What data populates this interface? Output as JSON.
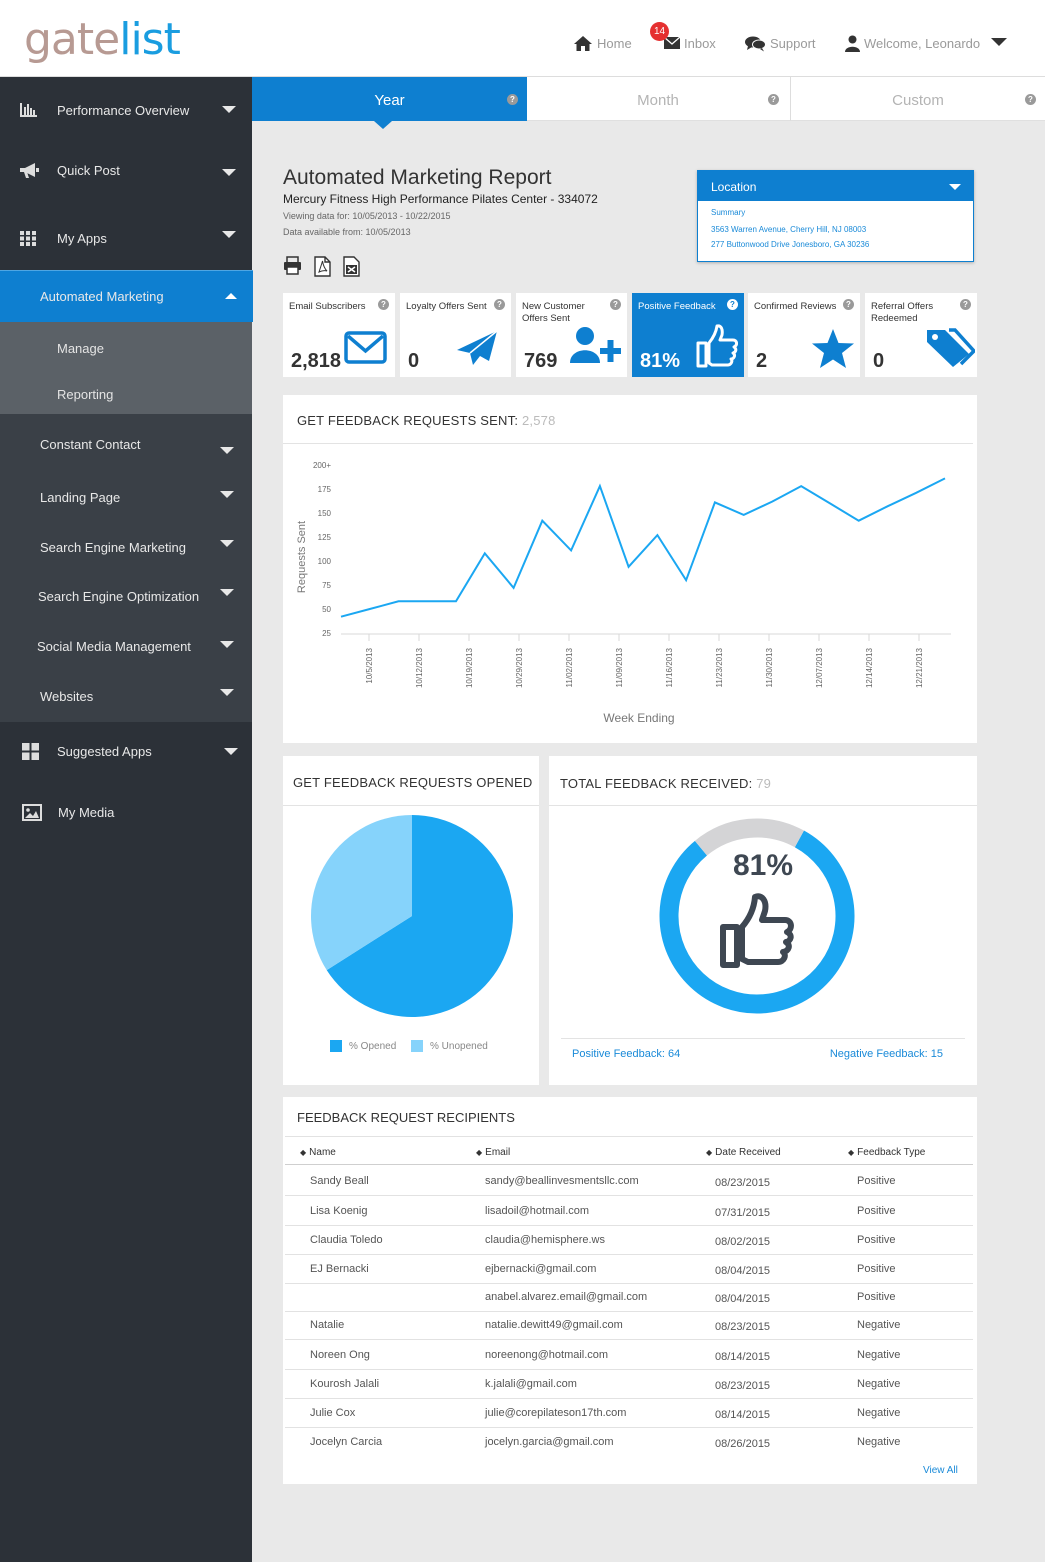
{
  "brand": {
    "logo_gate": "gate",
    "logo_list": "list"
  },
  "topnav": {
    "home": "Home",
    "inbox": "Inbox",
    "inbox_badge": "14",
    "support": "Support",
    "welcome": "Welcome, Leonardo"
  },
  "sidebar": {
    "performance": "Performance Overview",
    "quick_post": "Quick Post",
    "my_apps": "My Apps",
    "automated_marketing": "Automated Marketing",
    "manage": "Manage",
    "reporting": "Reporting",
    "constant_contact": "Constant Contact",
    "landing_page": "Landing Page",
    "sem": "Search Engine Marketing",
    "seo": "Search Engine Optimization",
    "smm": "Social Media Management",
    "websites": "Websites",
    "suggested_apps": "Suggested Apps",
    "my_media": "My Media"
  },
  "tabs": {
    "year": "Year",
    "month": "Month",
    "custom": "Custom"
  },
  "report": {
    "title": "Automated Marketing Report",
    "subtitle": "Mercury  Fitness High Performance Pilates Center - 334072",
    "viewing": "Viewing data for: 10/05/2013 - 10/22/2015",
    "available": "Data available from: 10/05/2013"
  },
  "location": {
    "label": "Location",
    "options": [
      "Summary",
      "3563 Warren Avenue, Cherry Hill, NJ 08003",
      "277 Buttonwood Drive Jonesboro, GA 30236"
    ]
  },
  "cards": [
    {
      "label": "Email Subscribers",
      "value": "2,818",
      "icon": "envelope-icon"
    },
    {
      "label": "Loyalty Offers Sent",
      "value": "0",
      "icon": "paper-plane-icon"
    },
    {
      "label": "New Customer Offers Sent",
      "value": "769",
      "icon": "add-user-icon"
    },
    {
      "label": "Positive Feedback",
      "value": "81%",
      "icon": "thumbs-up-icon"
    },
    {
      "label": "Confirmed Reviews",
      "value": "2",
      "icon": "star-icon"
    },
    {
      "label": "Referral Offers Redeemed",
      "value": "0",
      "icon": "tags-icon"
    }
  ],
  "line_panel": {
    "title": "GET FEEDBACK REQUESTS SENT:",
    "total": "2,578"
  },
  "pie_panel": {
    "title": "GET FEEDBACK REQUESTS OPENED",
    "legend_opened": "% Opened",
    "legend_unopened": "% Unopened"
  },
  "gauge_panel": {
    "title": "TOTAL FEEDBACK RECEIVED:",
    "total": "79",
    "percent_label": "81%",
    "positive": "Positive Feedback: 64",
    "negative": "Negative Feedback: 15"
  },
  "colors": {
    "primary": "#0e7fd0",
    "series": "#1ba7f2",
    "pie_light": "#86d3fb",
    "gauge_rest": "#d4d4d6",
    "sidebar": "#2c3138"
  },
  "chart_data": [
    {
      "type": "line",
      "title": "",
      "xlabel": "Week Ending",
      "ylabel": "Requests Sent",
      "ylim": [
        25,
        200
      ],
      "yticks": [
        "25",
        "50",
        "75",
        "100",
        "125",
        "150",
        "175",
        "200+"
      ],
      "xtick_labels": [
        "10/5/2013",
        "10/12/2013",
        "10/19/2013",
        "10/29/2013",
        "11/02/2013",
        "11/09/2013",
        "11/16/2013",
        "11/23/2013",
        "11/30/2013",
        "12/07/2013",
        "12/14/2013",
        "12/21/2013"
      ],
      "grid": false,
      "series": [
        {
          "values": [
            42,
            50,
            58,
            58,
            58,
            108,
            72,
            142,
            111,
            178,
            94,
            127,
            80,
            161,
            148,
            162,
            178,
            160,
            142,
            157,
            171,
            186
          ]
        }
      ]
    },
    {
      "type": "pie",
      "title": "",
      "legend_position": "bottom",
      "slices": [
        {
          "name": "% Opened",
          "value": 66
        },
        {
          "name": "% Unopened",
          "value": 34
        }
      ]
    },
    {
      "type": "pie",
      "title": "",
      "slices": [
        {
          "name": "Positive Feedback",
          "value": 64
        },
        {
          "name": "Negative Feedback",
          "value": 15
        }
      ]
    }
  ],
  "table": {
    "title": "FEEDBACK REQUEST RECIPIENTS",
    "headers": {
      "name": "Name",
      "email": "Email",
      "date": "Date Received",
      "type": "Feedback Type"
    },
    "rows": [
      {
        "name": "Sandy Beall",
        "email": "sandy@beallinvesmentsllc.com",
        "date": "08/23/2015",
        "type": "Positive"
      },
      {
        "name": "Lisa Koenig",
        "email": "lisadoil@hotmail.com",
        "date": "07/31/2015",
        "type": "Positive"
      },
      {
        "name": "Claudia Toledo",
        "email": "claudia@hemisphere.ws",
        "date": "08/02/2015",
        "type": "Positive"
      },
      {
        "name": "EJ Bernacki",
        "email": "ejbernacki@gmail.com",
        "date": "08/04/2015",
        "type": "Positive"
      },
      {
        "name": "",
        "email": "anabel.alvarez.email@gmail.com",
        "date": "08/04/2015",
        "type": "Positive"
      },
      {
        "name": "Natalie",
        "email": "natalie.dewitt49@gmail.com",
        "date": "08/23/2015",
        "type": "Negative"
      },
      {
        "name": "Noreen Ong",
        "email": "noreenong@hotmail.com",
        "date": "08/14/2015",
        "type": "Negative"
      },
      {
        "name": "Kourosh Jalali",
        "email": "k.jalali@gmail.com",
        "date": "08/23/2015",
        "type": "Negative"
      },
      {
        "name": "Julie Cox",
        "email": "julie@corepilateson17th.com",
        "date": "08/14/2015",
        "type": "Negative"
      },
      {
        "name": "Jocelyn Carcia",
        "email": "jocelyn.garcia@gmail.com",
        "date": "08/26/2015",
        "type": "Negative"
      }
    ],
    "view_all": "View All"
  }
}
